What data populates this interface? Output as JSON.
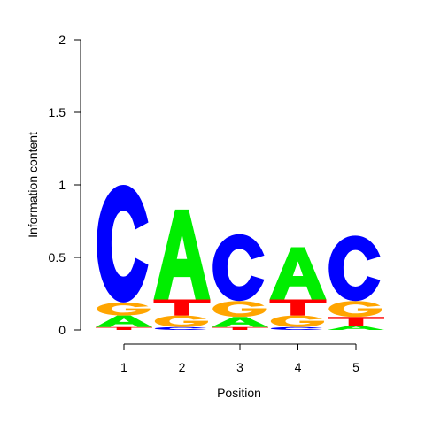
{
  "chart_data": {
    "type": "sequence-logo",
    "xlabel": "Position",
    "ylabel": "Information content",
    "ylim": [
      0,
      2
    ],
    "yticks": [
      "0",
      "0.5",
      "1",
      "1.5",
      "2"
    ],
    "positions": [
      "1",
      "2",
      "3",
      "4",
      "5"
    ],
    "letter_colors": {
      "A": "#00ee00",
      "C": "#0000ff",
      "G": "#ffa500",
      "T": "#ff0000"
    },
    "stacks": [
      [
        {
          "letter": "T",
          "height": 0.02
        },
        {
          "letter": "A",
          "height": 0.08
        },
        {
          "letter": "G",
          "height": 0.09
        },
        {
          "letter": "C",
          "height": 0.81
        }
      ],
      [
        {
          "letter": "C",
          "height": 0.02
        },
        {
          "letter": "G",
          "height": 0.08
        },
        {
          "letter": "T",
          "height": 0.11
        },
        {
          "letter": "A",
          "height": 0.62
        }
      ],
      [
        {
          "letter": "T",
          "height": 0.02
        },
        {
          "letter": "A",
          "height": 0.07
        },
        {
          "letter": "G",
          "height": 0.11
        },
        {
          "letter": "C",
          "height": 0.46
        }
      ],
      [
        {
          "letter": "C",
          "height": 0.02
        },
        {
          "letter": "G",
          "height": 0.08
        },
        {
          "letter": "T",
          "height": 0.11
        },
        {
          "letter": "A",
          "height": 0.36
        }
      ],
      [
        {
          "letter": "A",
          "height": 0.03
        },
        {
          "letter": "T",
          "height": 0.06
        },
        {
          "letter": "G",
          "height": 0.11
        },
        {
          "letter": "C",
          "height": 0.45
        }
      ]
    ]
  }
}
